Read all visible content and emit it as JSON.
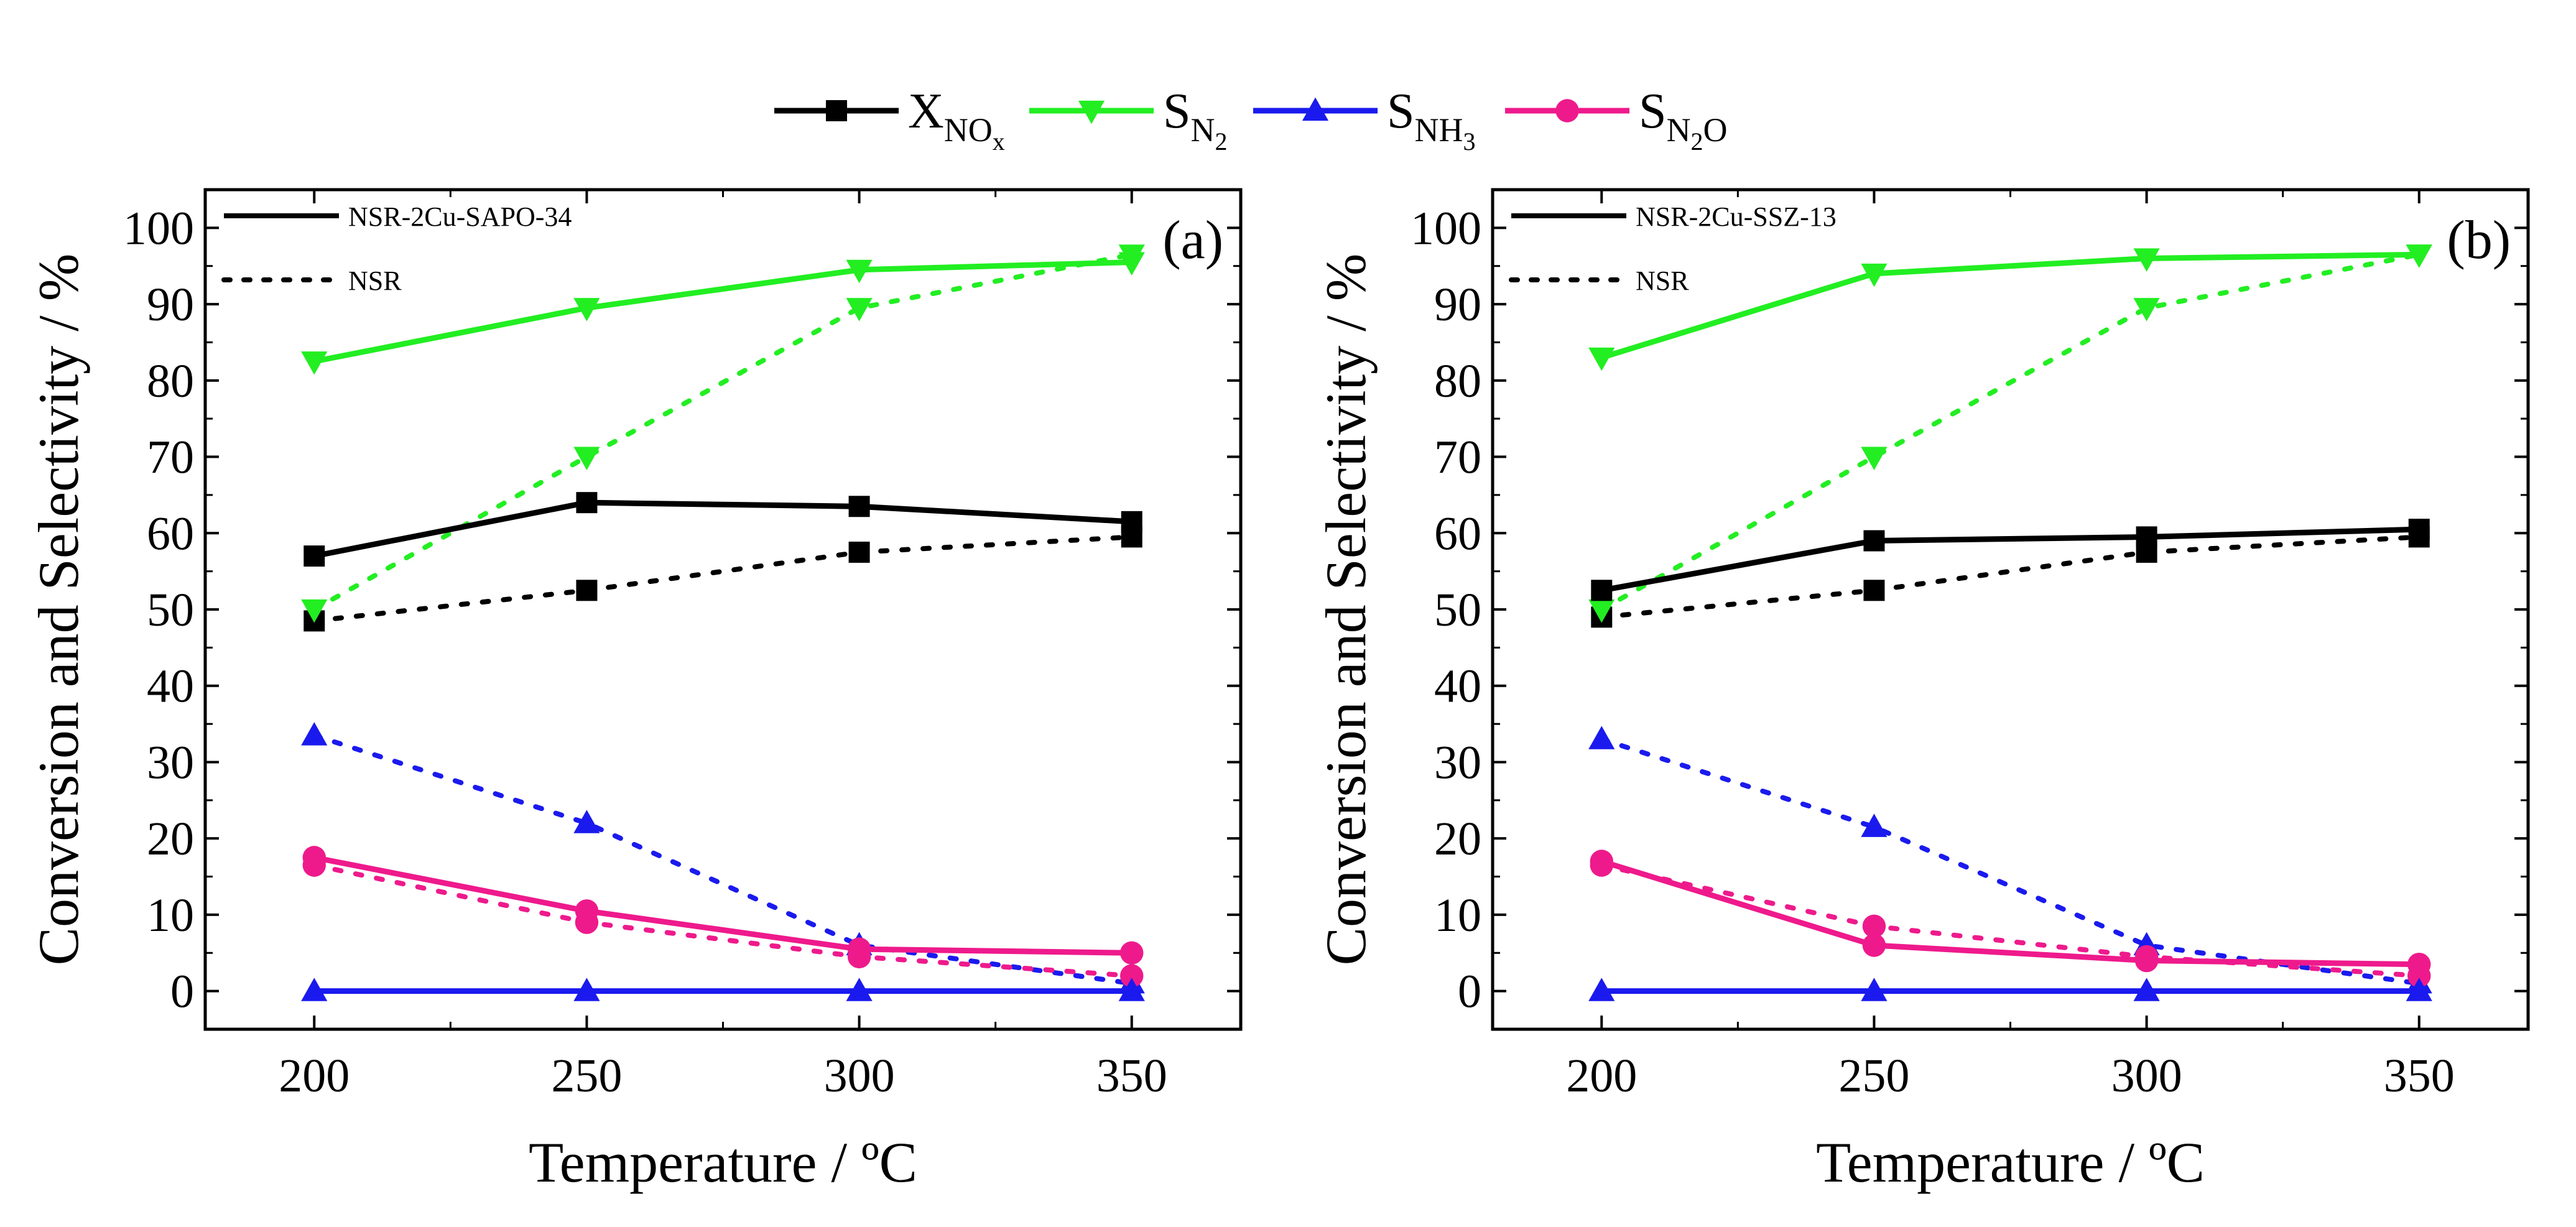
{
  "legend": {
    "entries": [
      {
        "key": "xnox",
        "main": "X",
        "sub": "NO",
        "subsub": "x",
        "subtail": "",
        "marker": "square",
        "color": "#000000"
      },
      {
        "key": "sn2",
        "main": "S",
        "sub": "N",
        "subsub": "2",
        "subtail": "",
        "marker": "triangle-down",
        "color": "#22ee22"
      },
      {
        "key": "snh3",
        "main": "S",
        "sub": "NH",
        "subsub": "3",
        "subtail": "",
        "marker": "triangle-up",
        "color": "#1a1aee"
      },
      {
        "key": "sn2o",
        "main": "S",
        "sub": "N",
        "subsub": "2",
        "subtail": "O",
        "marker": "circle",
        "color": "#ee1a8c"
      }
    ]
  },
  "chart_data": [
    {
      "type": "line",
      "panel_label": "(a)",
      "xlabel": "Temperature / ºC",
      "ylabel": "Conversion and Selectivity / %",
      "xlim": [
        180,
        370
      ],
      "ylim": [
        -5,
        105
      ],
      "x_ticks": [
        200,
        250,
        300,
        350
      ],
      "y_ticks": [
        0,
        10,
        20,
        30,
        40,
        50,
        60,
        70,
        80,
        90,
        100
      ],
      "style_legend": {
        "solid": "NSR-2Cu-SAPO-34",
        "dotted": "NSR"
      },
      "x": [
        200,
        250,
        300,
        350
      ],
      "series": [
        {
          "key": "xnox",
          "line": "solid",
          "values": [
            57,
            64,
            63.5,
            61.5
          ]
        },
        {
          "key": "xnox",
          "line": "dotted",
          "values": [
            48.5,
            52.5,
            57.5,
            59.5
          ]
        },
        {
          "key": "sn2",
          "line": "solid",
          "values": [
            82.5,
            89.5,
            94.5,
            95.5
          ]
        },
        {
          "key": "sn2",
          "line": "dotted",
          "values": [
            50,
            70,
            89.5,
            96.5
          ]
        },
        {
          "key": "snh3",
          "line": "solid",
          "values": [
            0,
            0,
            0,
            0
          ]
        },
        {
          "key": "snh3",
          "line": "dotted",
          "values": [
            33.5,
            22,
            6,
            1
          ]
        },
        {
          "key": "sn2o",
          "line": "solid",
          "values": [
            17.5,
            10.5,
            5.5,
            5
          ]
        },
        {
          "key": "sn2o",
          "line": "dotted",
          "values": [
            16.5,
            9,
            4.5,
            2
          ]
        }
      ]
    },
    {
      "type": "line",
      "panel_label": "(b)",
      "xlabel": "Temperature / ºC",
      "ylabel": "Conversion and Selectivity / %",
      "xlim": [
        180,
        370
      ],
      "ylim": [
        -5,
        105
      ],
      "x_ticks": [
        200,
        250,
        300,
        350
      ],
      "y_ticks": [
        0,
        10,
        20,
        30,
        40,
        50,
        60,
        70,
        80,
        90,
        100
      ],
      "style_legend": {
        "solid": "NSR-2Cu-SSZ-13",
        "dotted": "NSR"
      },
      "x": [
        200,
        250,
        300,
        350
      ],
      "series": [
        {
          "key": "xnox",
          "line": "solid",
          "values": [
            52.5,
            59,
            59.5,
            60.5
          ]
        },
        {
          "key": "xnox",
          "line": "dotted",
          "values": [
            49,
            52.5,
            57.5,
            59.5
          ]
        },
        {
          "key": "sn2",
          "line": "solid",
          "values": [
            83,
            94,
            96,
            96.5
          ]
        },
        {
          "key": "sn2",
          "line": "dotted",
          "values": [
            50,
            70,
            89.5,
            96.5
          ]
        },
        {
          "key": "snh3",
          "line": "solid",
          "values": [
            0,
            0,
            0,
            0
          ]
        },
        {
          "key": "snh3",
          "line": "dotted",
          "values": [
            33,
            21.5,
            6,
            1
          ]
        },
        {
          "key": "sn2o",
          "line": "solid",
          "values": [
            17,
            6,
            4,
            3.5
          ]
        },
        {
          "key": "sn2o",
          "line": "dotted",
          "values": [
            16.5,
            8.5,
            4.5,
            2
          ]
        }
      ]
    }
  ]
}
